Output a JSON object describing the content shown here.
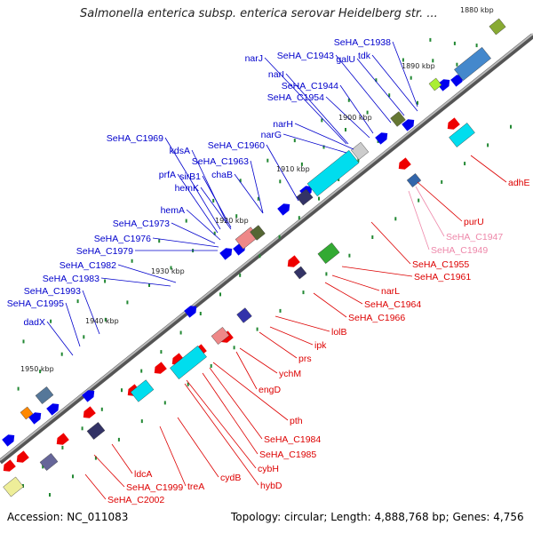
{
  "title": "Salmonella enterica subsp. enterica serovar Heidelberg str. ...",
  "accession_text": "Accession: NC_011083",
  "summary_text": "Topology: circular; Length: 4,888,768 bp; Genes: 4,756",
  "colors": {
    "forward_label": "#0000cc",
    "reverse_label": "#dd0000",
    "pink_label": "#ee88aa",
    "backbone": "#999999",
    "tick_dot": "#228833"
  },
  "position_ticks": [
    "1880 kbp",
    "1890 kbp",
    "1900 kbp",
    "1910 kbp",
    "1920 kbp",
    "1930 kbp",
    "1940 kbp",
    "1950 kbp"
  ],
  "forward_genes": [
    "SeHA_C1938",
    "tdk",
    "galU",
    "SeHA_C1943",
    "narJ",
    "narI",
    "SeHA_C1944",
    "SeHA_C1954",
    "narH",
    "narG",
    "SeHA_C1960",
    "SeHA_C1963",
    "chaB",
    "SeHA_C1969",
    "kdsA",
    "prfA",
    "sirB1",
    "hemK",
    "hemA",
    "SeHA_C1973",
    "SeHA_C1976",
    "SeHA_C1979",
    "SeHA_C1982",
    "SeHA_C1983",
    "SeHA_C1993",
    "SeHA_C1995",
    "dadX"
  ],
  "reverse_genes": [
    "adhE",
    "purU",
    "SeHA_C1955",
    "SeHA_C1961",
    "narL",
    "SeHA_C1964",
    "SeHA_C1966",
    "lolB",
    "ipk",
    "prs",
    "ychM",
    "engD",
    "pth",
    "SeHA_C1984",
    "SeHA_C1985",
    "cydB",
    "cybH",
    "hybD",
    "treA",
    "ldcA",
    "SeHA_C1999",
    "SeHA_C2002"
  ],
  "pink_genes": [
    "SeHA_C1947",
    "SeHA_C1949"
  ]
}
